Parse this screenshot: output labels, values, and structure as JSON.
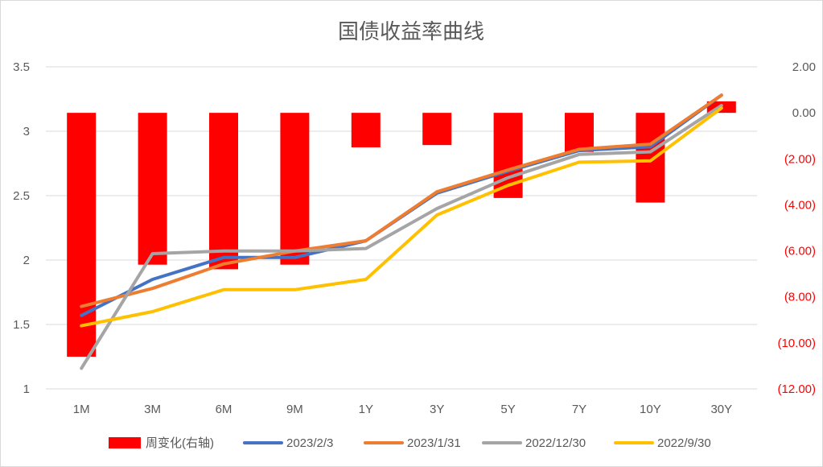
{
  "chart_data": {
    "type": "bar+line",
    "title": "国债收益率曲线",
    "categories": [
      "1M",
      "3M",
      "6M",
      "9M",
      "1Y",
      "3Y",
      "5Y",
      "7Y",
      "10Y",
      "30Y"
    ],
    "y_left": {
      "range": [
        1,
        3.5
      ],
      "ticks": [
        "1",
        "1.5",
        "2",
        "2.5",
        "3",
        "3.5"
      ],
      "tick_values": [
        1,
        1.5,
        2,
        2.5,
        3,
        3.5
      ]
    },
    "y_right": {
      "range": [
        -12,
        2
      ],
      "ticks": [
        "(12.00)",
        "(10.00)",
        "(8.00)",
        "(6.00)",
        "(4.00)",
        "(2.00)",
        "0.00",
        "2.00"
      ],
      "tick_values": [
        -12,
        -10,
        -8,
        -6,
        -4,
        -2,
        0,
        2
      ],
      "negative_color": "#ff0000"
    },
    "bars": {
      "name": "周变化(右轴)",
      "axis": "right",
      "color": "#ff0000",
      "values": [
        -10.6,
        -6.6,
        -6.8,
        -6.6,
        -1.5,
        -1.4,
        -3.7,
        -1.7,
        -3.9,
        0.5
      ]
    },
    "series": [
      {
        "name": "2023/2/3",
        "color": "#4472c4",
        "values": [
          1.57,
          1.85,
          2.02,
          2.02,
          2.15,
          2.52,
          2.69,
          2.85,
          2.88,
          3.28
        ]
      },
      {
        "name": "2023/1/31",
        "color": "#ed7d31",
        "values": [
          1.64,
          1.78,
          1.97,
          2.07,
          2.15,
          2.53,
          2.7,
          2.86,
          2.9,
          3.28
        ]
      },
      {
        "name": "2022/12/30",
        "color": "#a5a5a5",
        "values": [
          1.16,
          2.05,
          2.07,
          2.07,
          2.09,
          2.4,
          2.64,
          2.82,
          2.84,
          3.2
        ]
      },
      {
        "name": "2022/9/30",
        "color": "#ffc000",
        "values": [
          1.49,
          1.6,
          1.77,
          1.77,
          1.85,
          2.35,
          2.58,
          2.76,
          2.77,
          3.18
        ]
      }
    ],
    "grid": true,
    "legend": "bottom"
  }
}
